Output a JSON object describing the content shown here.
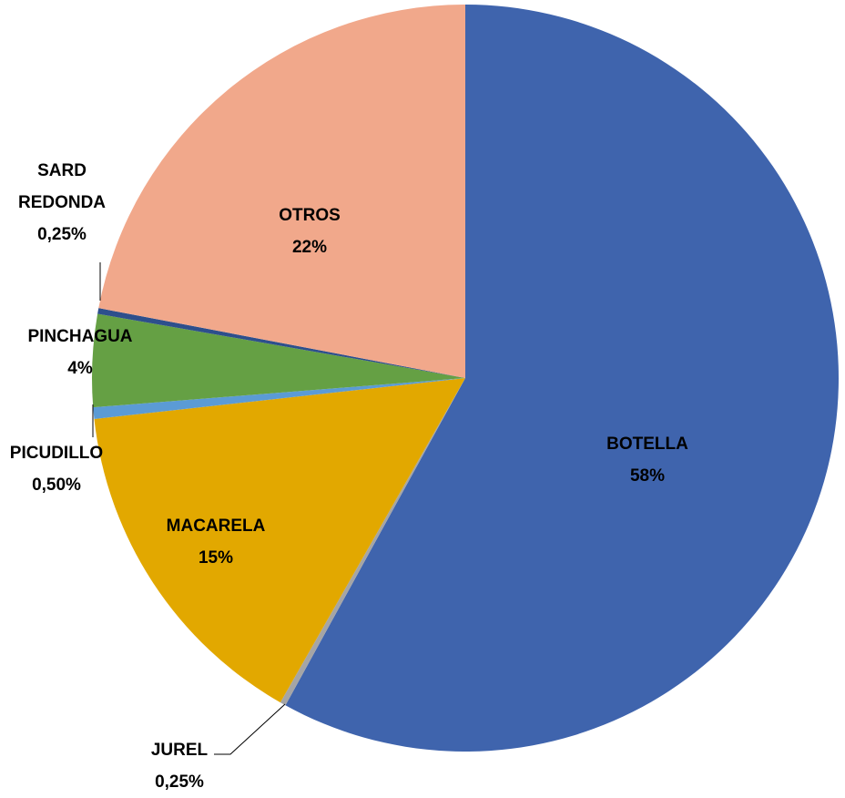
{
  "chart_data": {
    "type": "pie",
    "categories": [
      "BOTELLA",
      "JUREL",
      "MACARELA",
      "PICUDILLO",
      "PINCHAGUA",
      "SARD REDONDA",
      "OTROS"
    ],
    "values": [
      58,
      0.25,
      15,
      0.5,
      4,
      0.25,
      22
    ],
    "value_labels": [
      "58%",
      "0,25%",
      "15%",
      "0,50%",
      "4%",
      "0,25%",
      "22%"
    ],
    "colors": [
      "#3f64ad",
      "#a5a5a5",
      "#e2a800",
      "#5b9bd5",
      "#65a044",
      "#2d4f8c",
      "#f1a88b"
    ]
  }
}
